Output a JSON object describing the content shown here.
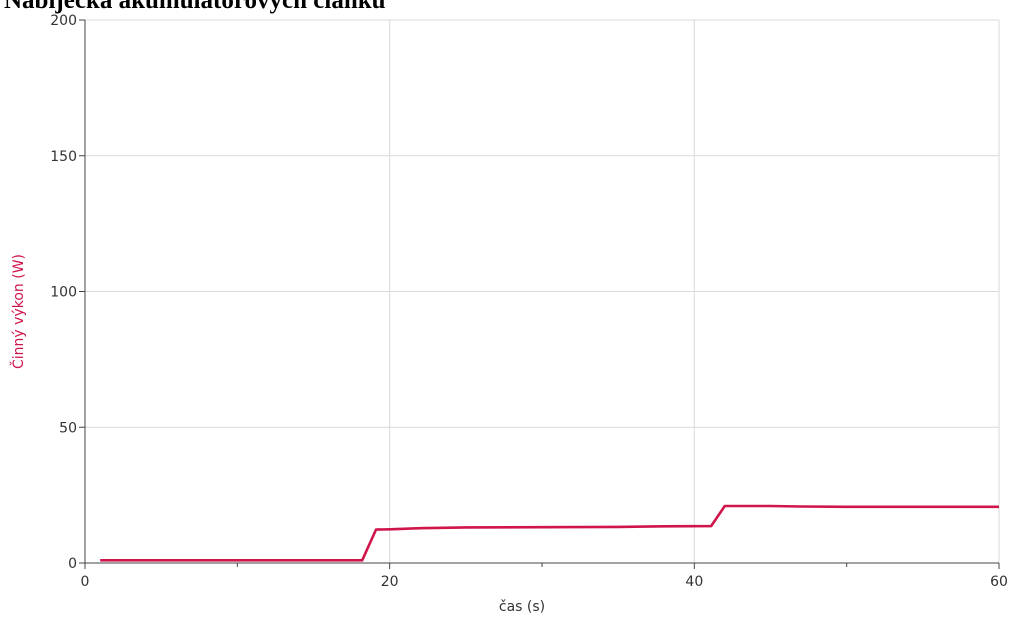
{
  "chart_data": {
    "type": "line",
    "title": "Nabíječka akumulátorových článků",
    "xlabel": "čas (s)",
    "ylabel": "Činný výkon (W)",
    "xlim": [
      0,
      60
    ],
    "ylim": [
      0,
      200
    ],
    "xticks": [
      0,
      20,
      40,
      60
    ],
    "yticks": [
      0,
      50,
      100,
      150,
      200
    ],
    "minor_xticks": [
      10,
      30,
      50
    ],
    "grid": true,
    "colors": {
      "series": "#d0154a",
      "ylabel": "#d0154a",
      "grid": "#d9d9d9",
      "axis": "#444444"
    },
    "series": [
      {
        "x": [
          1,
          5,
          10,
          15,
          18.2,
          19.1,
          20,
          22,
          25,
          30,
          35,
          38,
          41.1,
          42,
          45,
          47,
          50,
          55,
          60
        ],
        "y": [
          1,
          1,
          1,
          1,
          1,
          12.3,
          12.4,
          12.8,
          13.1,
          13.2,
          13.3,
          13.5,
          13.6,
          21,
          21,
          20.8,
          20.7,
          20.7,
          20.7
        ]
      }
    ]
  }
}
